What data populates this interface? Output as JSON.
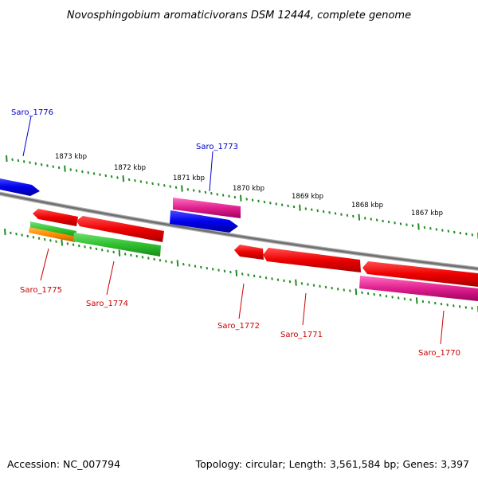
{
  "title": "Novosphingobium aromaticivorans DSM 12444, complete genome",
  "footer": {
    "accession": "Accession: NC_007794",
    "summary": "Topology: circular; Length: 3,561,584 bp; Genes: 3,397"
  },
  "kbp_ticks": [
    "1873 kbp",
    "1872 kbp",
    "1871 kbp",
    "1870 kbp",
    "1869 kbp",
    "1868 kbp",
    "1867 kbp"
  ],
  "labels": [
    {
      "text": "Saro_1776",
      "color": "#0000cc"
    },
    {
      "text": "Saro_1773",
      "color": "#0000cc"
    },
    {
      "text": "Saro_1775",
      "color": "#cc0000"
    },
    {
      "text": "Saro_1774",
      "color": "#cc0000"
    },
    {
      "text": "Saro_1772",
      "color": "#cc0000"
    },
    {
      "text": "Saro_1771",
      "color": "#cc0000"
    },
    {
      "text": "Saro_1770",
      "color": "#cc0000"
    }
  ],
  "colors": {
    "backbone": "#808080",
    "ticks": "#228b22",
    "blue_gene": "#0000ee",
    "red_gene": "#ee0000",
    "pink_gene": "#e0208e",
    "green_gene": "#30c030",
    "orange_gene": "#ff8c00"
  }
}
